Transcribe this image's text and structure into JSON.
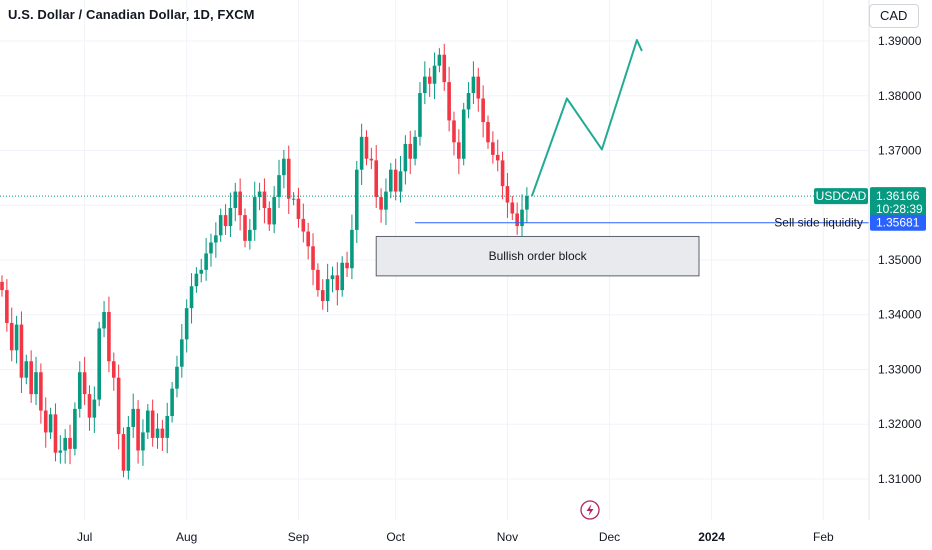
{
  "header": {
    "title": "U.S. Dollar / Canadian Dollar, 1D, FXCM",
    "currency_button": "CAD"
  },
  "price_tag": {
    "symbol": "USDCAD",
    "price": "1.36166",
    "countdown": "10:28:39",
    "color": "#089981"
  },
  "liquidity_tag": {
    "label": "Sell side liquidity",
    "price": "1.35681",
    "color": "#2962ff"
  },
  "order_block": {
    "label": "Bullish order block",
    "top": 1.3543,
    "bottom": 1.3471
  },
  "colors": {
    "up": "#089981",
    "down": "#f23645",
    "grid": "#f0f3fa",
    "projection": "#22ab94"
  },
  "chart_data": {
    "type": "candlestick",
    "ylim": [
      1.3025,
      1.3975
    ],
    "y_ticks": [
      "1.31000",
      "1.32000",
      "1.33000",
      "1.34000",
      "1.35000",
      "1.36000",
      "1.37000",
      "1.38000",
      "1.39000"
    ],
    "x_ticks": [
      {
        "label": "Jul",
        "bar": 17
      },
      {
        "label": "Aug",
        "bar": 38
      },
      {
        "label": "Sep",
        "bar": 61
      },
      {
        "label": "Oct",
        "bar": 81
      },
      {
        "label": "Nov",
        "bar": 104
      },
      {
        "label": "Dec",
        "bar": 125
      },
      {
        "label": "2024",
        "bar": 146,
        "bold": true
      },
      {
        "label": "Feb",
        "bar": 169
      }
    ],
    "closes": [
      1.3445,
      1.3385,
      1.3335,
      1.3382,
      1.3285,
      1.3315,
      1.3255,
      1.3295,
      1.3225,
      1.3185,
      1.3218,
      1.3148,
      1.3152,
      1.3175,
      1.3155,
      1.3228,
      1.3295,
      1.3255,
      1.3212,
      1.3245,
      1.3375,
      1.3405,
      1.3315,
      1.3285,
      1.3182,
      1.3115,
      1.3195,
      1.3228,
      1.3152,
      1.3185,
      1.3225,
      1.3175,
      1.3192,
      1.3175,
      1.3215,
      1.3265,
      1.3305,
      1.3355,
      1.3412,
      1.3452,
      1.3475,
      1.3482,
      1.3512,
      1.3532,
      1.3545,
      1.3582,
      1.3562,
      1.3595,
      1.3625,
      1.3582,
      1.3535,
      1.3555,
      1.3615,
      1.3625,
      1.3595,
      1.3565,
      1.3615,
      1.3655,
      1.3685,
      1.3612,
      1.3612,
      1.3575,
      1.3552,
      1.3525,
      1.3482,
      1.3445,
      1.3425,
      1.3465,
      1.3472,
      1.3445,
      1.3495,
      1.3485,
      1.3555,
      1.3665,
      1.3725,
      1.3685,
      1.3682,
      1.3615,
      1.3592,
      1.3625,
      1.3665,
      1.3625,
      1.3662,
      1.3712,
      1.3685,
      1.3725,
      1.3805,
      1.3835,
      1.3822,
      1.3855,
      1.3875,
      1.3825,
      1.3755,
      1.3715,
      1.3685,
      1.3775,
      1.3805,
      1.3835,
      1.3795,
      1.3752,
      1.3715,
      1.3692,
      1.3682,
      1.3635,
      1.3605,
      1.3585,
      1.3562,
      1.3592,
      1.3617
    ],
    "projection_path": [
      [
        1.3617,
        0
      ],
      [
        1.3795,
        7
      ],
      [
        1.3702,
        14
      ],
      [
        1.3902,
        21
      ],
      [
        1.3882,
        22
      ]
    ],
    "sell_side_liquidity": 1.35681,
    "last_price": 1.36166
  }
}
